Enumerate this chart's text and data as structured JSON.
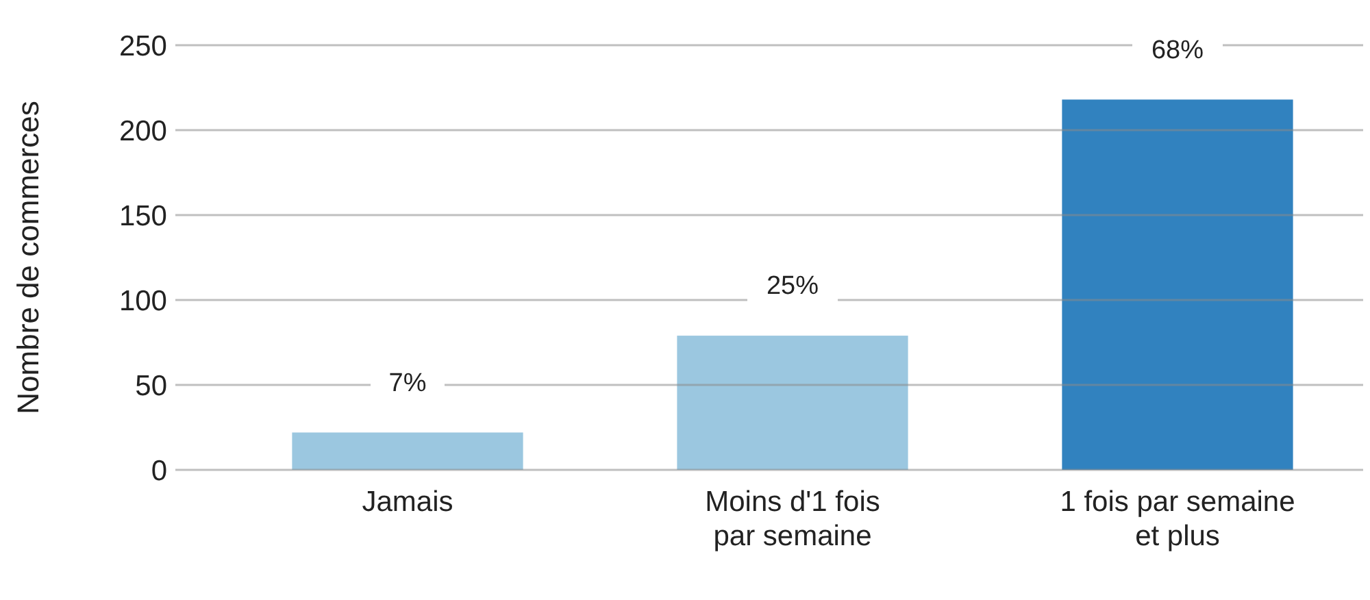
{
  "chart_data": {
    "type": "bar",
    "ylabel": "Nombre de commerces",
    "categories": [
      "Jamais",
      "Moins d'1 fois\npar semaine",
      "1 fois par semaine\net plus"
    ],
    "values": [
      22,
      79,
      218
    ],
    "colors": [
      "#9bc7e0",
      "#9bc7e0",
      "#3182bf"
    ],
    "annotations": [
      {
        "text": "7%",
        "x": "Jamais",
        "y": 22
      },
      {
        "text": "25%",
        "x": "Moins d'1 fois\npar semaine",
        "y": 79
      },
      {
        "text": "68%",
        "x": "1 fois par semaine\net plus",
        "y": 218
      }
    ],
    "ylim": [
      0,
      250
    ],
    "yticks": [
      0,
      50,
      100,
      150,
      200,
      250
    ],
    "grid": "y"
  }
}
